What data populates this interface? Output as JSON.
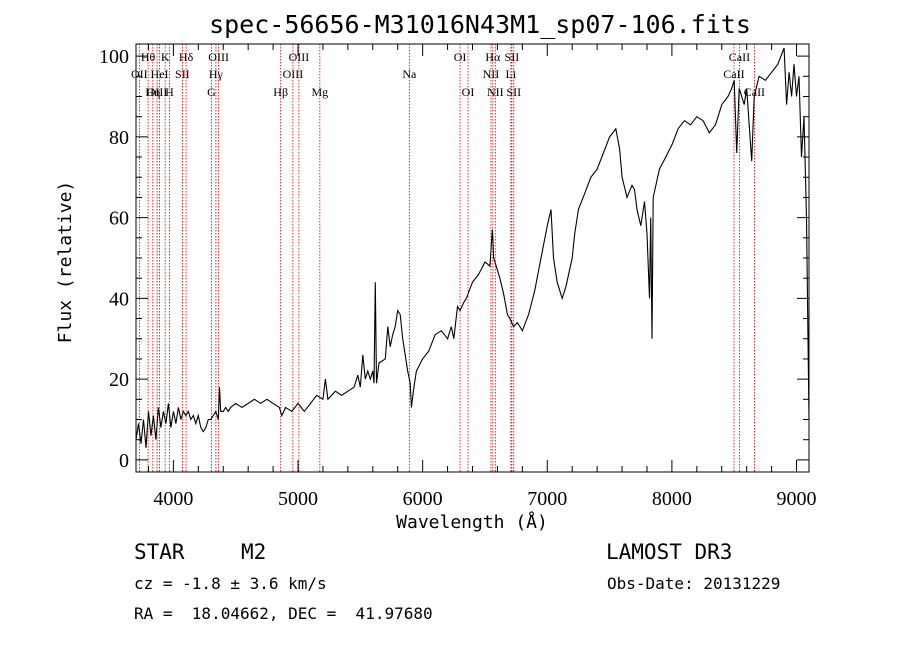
{
  "chart_data": {
    "type": "line",
    "title": "spec-56656-M31016N43M1_sp07-106.fits",
    "xlabel": "Wavelength (Å)",
    "ylabel": "Flux (relative)",
    "xlim": [
      3700,
      9100
    ],
    "ylim": [
      -3,
      103
    ],
    "xticks": [
      4000,
      5000,
      6000,
      7000,
      8000,
      9000
    ],
    "yticks": [
      0,
      20,
      40,
      60,
      80,
      100
    ],
    "x_minor_step": 200,
    "y_minor_step": 5,
    "series": [
      {
        "name": "spectrum",
        "points": [
          [
            3700,
            5
          ],
          [
            3720,
            9
          ],
          [
            3740,
            4
          ],
          [
            3760,
            10
          ],
          [
            3780,
            3
          ],
          [
            3800,
            12
          ],
          [
            3820,
            6
          ],
          [
            3840,
            11
          ],
          [
            3860,
            5
          ],
          [
            3880,
            13
          ],
          [
            3900,
            8
          ],
          [
            3920,
            12
          ],
          [
            3940,
            9
          ],
          [
            3960,
            14
          ],
          [
            3980,
            8
          ],
          [
            4000,
            12
          ],
          [
            4020,
            9
          ],
          [
            4040,
            13
          ],
          [
            4060,
            10
          ],
          [
            4080,
            12
          ],
          [
            4100,
            11
          ],
          [
            4120,
            12
          ],
          [
            4140,
            10
          ],
          [
            4160,
            11
          ],
          [
            4180,
            9
          ],
          [
            4200,
            11
          ],
          [
            4220,
            8
          ],
          [
            4240,
            7
          ],
          [
            4260,
            8
          ],
          [
            4280,
            10
          ],
          [
            4300,
            10
          ],
          [
            4320,
            11
          ],
          [
            4340,
            12
          ],
          [
            4360,
            10
          ],
          [
            4370,
            18
          ],
          [
            4380,
            12
          ],
          [
            4400,
            12
          ],
          [
            4420,
            13
          ],
          [
            4440,
            12
          ],
          [
            4460,
            13
          ],
          [
            4500,
            14
          ],
          [
            4550,
            13
          ],
          [
            4600,
            14
          ],
          [
            4650,
            15
          ],
          [
            4700,
            14
          ],
          [
            4750,
            15
          ],
          [
            4800,
            14
          ],
          [
            4850,
            13
          ],
          [
            4870,
            11
          ],
          [
            4900,
            13
          ],
          [
            4950,
            12
          ],
          [
            5000,
            14
          ],
          [
            5050,
            12
          ],
          [
            5100,
            14
          ],
          [
            5150,
            16
          ],
          [
            5200,
            15
          ],
          [
            5220,
            20
          ],
          [
            5240,
            15
          ],
          [
            5300,
            17
          ],
          [
            5350,
            16
          ],
          [
            5400,
            17
          ],
          [
            5450,
            18
          ],
          [
            5480,
            21
          ],
          [
            5500,
            18
          ],
          [
            5520,
            26
          ],
          [
            5540,
            20
          ],
          [
            5560,
            22
          ],
          [
            5580,
            20
          ],
          [
            5600,
            22
          ],
          [
            5610,
            19
          ],
          [
            5620,
            44
          ],
          [
            5630,
            19
          ],
          [
            5650,
            24
          ],
          [
            5700,
            25
          ],
          [
            5720,
            33
          ],
          [
            5740,
            28
          ],
          [
            5760,
            31
          ],
          [
            5780,
            33
          ],
          [
            5800,
            37
          ],
          [
            5820,
            36
          ],
          [
            5840,
            30
          ],
          [
            5860,
            26
          ],
          [
            5880,
            22
          ],
          [
            5900,
            19
          ],
          [
            5910,
            13
          ],
          [
            5930,
            18
          ],
          [
            5950,
            22
          ],
          [
            6000,
            25
          ],
          [
            6050,
            27
          ],
          [
            6100,
            31
          ],
          [
            6150,
            32
          ],
          [
            6200,
            30
          ],
          [
            6230,
            33
          ],
          [
            6250,
            30
          ],
          [
            6280,
            38
          ],
          [
            6300,
            37
          ],
          [
            6330,
            39
          ],
          [
            6350,
            40
          ],
          [
            6400,
            44
          ],
          [
            6450,
            46
          ],
          [
            6500,
            49
          ],
          [
            6540,
            48
          ],
          [
            6560,
            57
          ],
          [
            6570,
            50
          ],
          [
            6600,
            47
          ],
          [
            6620,
            45
          ],
          [
            6650,
            41
          ],
          [
            6680,
            36
          ],
          [
            6700,
            35
          ],
          [
            6730,
            33
          ],
          [
            6760,
            34
          ],
          [
            6800,
            32
          ],
          [
            6850,
            36
          ],
          [
            6900,
            42
          ],
          [
            6950,
            50
          ],
          [
            7000,
            58
          ],
          [
            7030,
            62
          ],
          [
            7050,
            50
          ],
          [
            7080,
            44
          ],
          [
            7120,
            40
          ],
          [
            7150,
            43
          ],
          [
            7200,
            50
          ],
          [
            7220,
            56
          ],
          [
            7250,
            62
          ],
          [
            7300,
            66
          ],
          [
            7350,
            70
          ],
          [
            7400,
            72
          ],
          [
            7450,
            76
          ],
          [
            7500,
            80
          ],
          [
            7550,
            82
          ],
          [
            7580,
            77
          ],
          [
            7600,
            70
          ],
          [
            7640,
            65
          ],
          [
            7680,
            68
          ],
          [
            7700,
            67
          ],
          [
            7720,
            62
          ],
          [
            7750,
            58
          ],
          [
            7780,
            64
          ],
          [
            7800,
            56
          ],
          [
            7820,
            40
          ],
          [
            7830,
            60
          ],
          [
            7840,
            30
          ],
          [
            7850,
            65
          ],
          [
            7900,
            72
          ],
          [
            7950,
            75
          ],
          [
            8000,
            78
          ],
          [
            8050,
            82
          ],
          [
            8100,
            84
          ],
          [
            8150,
            83
          ],
          [
            8200,
            85
          ],
          [
            8250,
            84
          ],
          [
            8300,
            81
          ],
          [
            8350,
            83
          ],
          [
            8400,
            88
          ],
          [
            8450,
            90
          ],
          [
            8480,
            92
          ],
          [
            8500,
            94
          ],
          [
            8520,
            76
          ],
          [
            8540,
            92
          ],
          [
            8560,
            90
          ],
          [
            8580,
            88
          ],
          [
            8600,
            92
          ],
          [
            8640,
            74
          ],
          [
            8660,
            90
          ],
          [
            8700,
            95
          ],
          [
            8750,
            94
          ],
          [
            8800,
            96
          ],
          [
            8850,
            98
          ],
          [
            8900,
            102
          ],
          [
            8920,
            88
          ],
          [
            8940,
            96
          ],
          [
            8960,
            90
          ],
          [
            8980,
            98
          ],
          [
            9000,
            90
          ],
          [
            9020,
            95
          ],
          [
            9040,
            75
          ],
          [
            9060,
            85
          ],
          [
            9080,
            60
          ],
          [
            9100,
            10
          ]
        ]
      }
    ],
    "lines": [
      {
        "label": "Hθ",
        "x": 3797,
        "row": 1
      },
      {
        "label": "OII",
        "x": 3727,
        "row": 2
      },
      {
        "label": "OIII",
        "x": 3869,
        "row": 3
      },
      {
        "label": "K",
        "x": 3934,
        "row": 1
      },
      {
        "label": "HeI",
        "x": 3889,
        "row": 2
      },
      {
        "label": "Hη",
        "x": 3835,
        "row": 3
      },
      {
        "label": "SII",
        "x": 4072,
        "row": 2
      },
      {
        "label": "H",
        "x": 3968,
        "row": 3
      },
      {
        "label": "Hδ",
        "x": 4102,
        "row": 1
      },
      {
        "label": "OIII",
        "x": 4363,
        "row": 1
      },
      {
        "label": "Hγ",
        "x": 4341,
        "row": 2
      },
      {
        "label": "G",
        "x": 4305,
        "row": 3
      },
      {
        "label": "Hβ",
        "x": 4861,
        "row": 3
      },
      {
        "label": "OIII",
        "x": 5007,
        "row": 1
      },
      {
        "label": "OIII",
        "x": 4959,
        "row": 2
      },
      {
        "label": "Mg",
        "x": 5175,
        "row": 3
      },
      {
        "label": "Na",
        "x": 5893,
        "row": 2
      },
      {
        "label": "OI",
        "x": 6300,
        "row": 1
      },
      {
        "label": "OI",
        "x": 6364,
        "row": 3
      },
      {
        "label": "Hα",
        "x": 6563,
        "row": 1
      },
      {
        "label": "SII",
        "x": 6716,
        "row": 1
      },
      {
        "label": "NII",
        "x": 6548,
        "row": 2
      },
      {
        "label": "Li",
        "x": 6708,
        "row": 2
      },
      {
        "label": "NII",
        "x": 6583,
        "row": 3
      },
      {
        "label": "SII",
        "x": 6731,
        "row": 3
      },
      {
        "label": "CaII",
        "x": 8542,
        "row": 1
      },
      {
        "label": "CaII",
        "x": 8498,
        "row": 2
      },
      {
        "label": "CaII",
        "x": 8662,
        "row": 3
      }
    ]
  },
  "info": {
    "class": "STAR",
    "subclass": "M2",
    "survey": "LAMOST DR3",
    "redshift": "cz = -1.8 ± 3.6 km/s",
    "obs_date": "Obs-Date: 20131229",
    "coords": "RA =  18.04662, DEC =  41.97680"
  },
  "colors": {
    "spectrum": "#000000",
    "line_marker": "#cc0000"
  }
}
